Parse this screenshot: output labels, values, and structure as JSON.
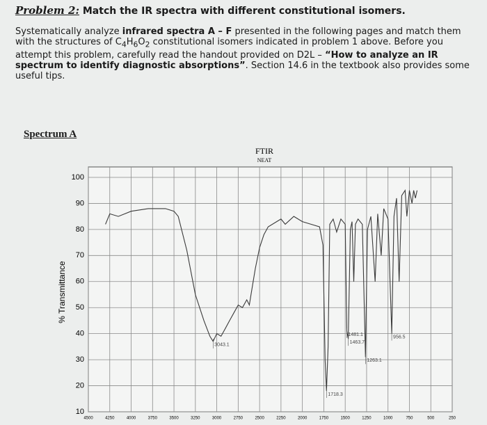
{
  "header": {
    "problem": "Problem 2:",
    "title": "Match the IR spectra with different constitutional isomers."
  },
  "intro": [
    "Systematically analyze ",
    "infrared spectra A – F",
    " presented in the following pages and match them with the structures of ",
    "C",
    "4",
    "H",
    "6",
    "O",
    "2",
    " constitutional isomers indicated in problem 1 above. Before you attempt this problem, carefully read the handout provided on D2L – ",
    "“How to analyze an IR spectrum to identify diagnostic",
    " absorptions”",
    ". Section 14.6 in the textbook also provides some useful tips."
  ],
  "section": "Spectrum A",
  "chart_data": {
    "type": "line",
    "title": "FTIR",
    "subtitle": "NEAT",
    "ylabel": "% Transmittance",
    "x": [
      4300,
      4250,
      4150,
      4000,
      3800,
      3600,
      3500,
      3450,
      3350,
      3250,
      3150,
      3080,
      3043.1,
      3000,
      2950,
      2900,
      2850,
      2800,
      2750,
      2700,
      2650,
      2620,
      2600,
      2550,
      2500,
      2450,
      2400,
      2300,
      2250,
      2200,
      2100,
      2000,
      1900,
      1800,
      1760,
      1735,
      1718.3,
      1700,
      1680,
      1640,
      1600,
      1550,
      1500,
      1481.1,
      1463.7,
      1440,
      1420,
      1400,
      1380,
      1350,
      1300,
      1263.1,
      1240,
      1200,
      1150,
      1120,
      1080,
      1050,
      1000,
      956.5,
      930,
      900,
      870,
      840,
      800,
      780,
      750,
      720,
      700,
      680,
      660
    ],
    "values": [
      82,
      86,
      85,
      87,
      88,
      88,
      87,
      85,
      72,
      55,
      45,
      39,
      37,
      40,
      39,
      42,
      45,
      48,
      51,
      50,
      53,
      51,
      55,
      65,
      73,
      78,
      81,
      83,
      84,
      82,
      85,
      83,
      82,
      81,
      74,
      30,
      18,
      35,
      82,
      84,
      79,
      84,
      82,
      41,
      38,
      80,
      83,
      60,
      82,
      84,
      82,
      31,
      80,
      85,
      60,
      86,
      70,
      88,
      84,
      40,
      85,
      92,
      60,
      93,
      95,
      85,
      95,
      90,
      95,
      92,
      95
    ],
    "color": "#3a3a3a",
    "peaks": [
      3043.1,
      1718.3,
      1481.1,
      1463.7,
      1263.1,
      956.5
    ],
    "xlim": [
      4500,
      250
    ],
    "ylim": [
      10,
      104
    ],
    "xticks": [
      4500,
      4250,
      4000,
      3750,
      3500,
      3250,
      3000,
      2750,
      2500,
      2250,
      2000,
      1750,
      1500,
      1250,
      1000,
      750,
      500,
      250
    ],
    "yticks": [
      10,
      20,
      30,
      40,
      50,
      60,
      70,
      80,
      90,
      100
    ],
    "grid": true
  }
}
